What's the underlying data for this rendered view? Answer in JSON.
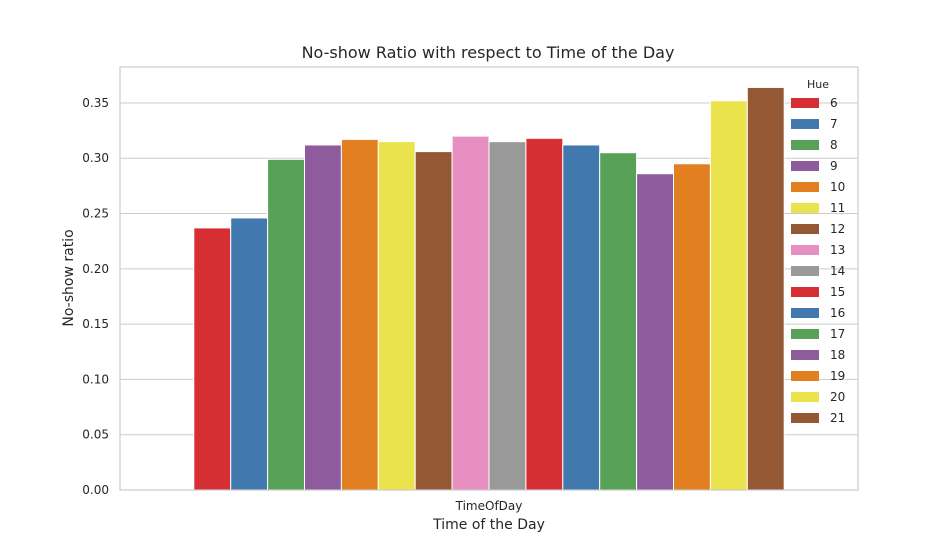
{
  "chart_data": {
    "type": "bar",
    "title": "No-show Ratio with respect to Time of the Day",
    "xlabel": "Time of the Day",
    "ylabel": "No-show ratio",
    "categories": [
      "TimeOfDay"
    ],
    "ylim": [
      0,
      0.3825
    ],
    "yticks": [
      0.0,
      0.05,
      0.1,
      0.15,
      0.2,
      0.25,
      0.3,
      0.35
    ],
    "ytick_labels": [
      "0.00",
      "0.05",
      "0.10",
      "0.15",
      "0.20",
      "0.25",
      "0.30",
      "0.35"
    ],
    "grid": true,
    "legend": {
      "title": "Hue",
      "placement": "top-right"
    },
    "series": [
      {
        "name": "6",
        "values": [
          0.237
        ],
        "color": "#d62f33"
      },
      {
        "name": "7",
        "values": [
          0.246
        ],
        "color": "#4178ad"
      },
      {
        "name": "8",
        "values": [
          0.299
        ],
        "color": "#57a257"
      },
      {
        "name": "9",
        "values": [
          0.312
        ],
        "color": "#8e5b9c"
      },
      {
        "name": "10",
        "values": [
          0.317
        ],
        "color": "#e27f21"
      },
      {
        "name": "11",
        "values": [
          0.315
        ],
        "color": "#ebe34c"
      },
      {
        "name": "12",
        "values": [
          0.306
        ],
        "color": "#955835"
      },
      {
        "name": "13",
        "values": [
          0.32
        ],
        "color": "#e78fc1"
      },
      {
        "name": "14",
        "values": [
          0.315
        ],
        "color": "#999999"
      },
      {
        "name": "15",
        "values": [
          0.318
        ],
        "color": "#d62f33"
      },
      {
        "name": "16",
        "values": [
          0.312
        ],
        "color": "#4178ad"
      },
      {
        "name": "17",
        "values": [
          0.305
        ],
        "color": "#57a257"
      },
      {
        "name": "18",
        "values": [
          0.286
        ],
        "color": "#8e5b9c"
      },
      {
        "name": "19",
        "values": [
          0.295
        ],
        "color": "#e27f21"
      },
      {
        "name": "20",
        "values": [
          0.352
        ],
        "color": "#ebe34c"
      },
      {
        "name": "21",
        "values": [
          0.364
        ],
        "color": "#955835"
      }
    ]
  }
}
